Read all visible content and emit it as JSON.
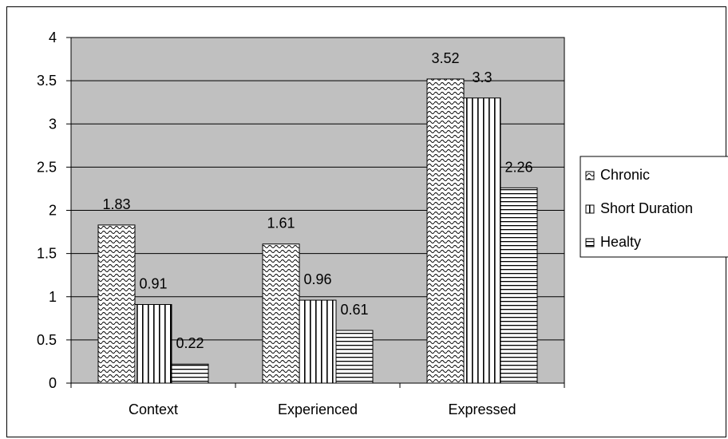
{
  "chart_data": {
    "type": "bar",
    "title": "",
    "xlabel": "",
    "ylabel": "",
    "categories": [
      "Context",
      "Experienced",
      "Expressed"
    ],
    "series": [
      {
        "name": "Chronic",
        "values": [
          1.83,
          1.61,
          3.52
        ],
        "pattern": "wave"
      },
      {
        "name": "Short Duration",
        "values": [
          0.91,
          0.96,
          3.3
        ],
        "pattern": "vertical"
      },
      {
        "name": "Healty",
        "values": [
          0.22,
          0.61,
          2.26
        ],
        "pattern": "horizontal"
      }
    ],
    "data_labels": [
      [
        "1.83",
        "1.61",
        "3.52"
      ],
      [
        "0.91",
        "0.96",
        "3.3"
      ],
      [
        "0.22",
        "0.61",
        "2.26"
      ]
    ],
    "ylim": [
      0,
      4
    ],
    "yticks": [
      0,
      0.5,
      1,
      1.5,
      2,
      2.5,
      3,
      3.5,
      4
    ],
    "ytick_labels": [
      "0",
      "0.5",
      "1",
      "1.5",
      "2",
      "2.5",
      "3",
      "3.5",
      "4"
    ],
    "grid": true,
    "legend_position": "right",
    "colors": {
      "plot_background": "#c0c0c0",
      "bar_fill": "#ffffff",
      "ink": "#000000"
    }
  }
}
